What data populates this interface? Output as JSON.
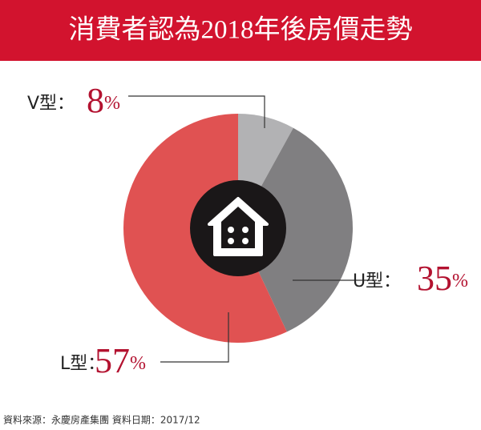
{
  "chart_data": {
    "type": "pie",
    "title": "消費者認為2018年後房價走勢",
    "categories": [
      "V型：",
      "U型：",
      "L型："
    ],
    "values": [
      8,
      35,
      57
    ],
    "value_labels": [
      "8%",
      "35%",
      "57%"
    ],
    "colors": [
      "#b2b2b4",
      "#807f81",
      "#e05252"
    ],
    "source": "資料來源：永慶房產集團  資料日期：2017/12"
  }
}
